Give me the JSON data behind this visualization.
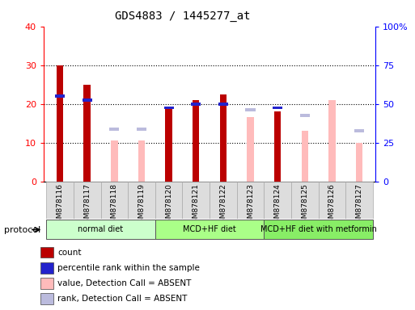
{
  "title": "GDS4883 / 1445277_at",
  "samples": [
    "GSM878116",
    "GSM878117",
    "GSM878118",
    "GSM878119",
    "GSM878120",
    "GSM878121",
    "GSM878122",
    "GSM878123",
    "GSM878124",
    "GSM878125",
    "GSM878126",
    "GSM878127"
  ],
  "count": [
    30,
    25,
    0,
    0,
    19,
    21,
    22.5,
    0,
    18,
    0,
    0,
    0
  ],
  "percentile": [
    22,
    21,
    0,
    0,
    19,
    20,
    20,
    0,
    19,
    0,
    0,
    0
  ],
  "value_absent": [
    0,
    0,
    10.5,
    10.5,
    0,
    0,
    0,
    16.5,
    0,
    13,
    21,
    10
  ],
  "rank_absent": [
    0,
    0,
    13.5,
    13.5,
    0,
    0,
    0,
    18.5,
    0,
    17,
    0,
    13
  ],
  "count_color": "#bb0000",
  "percentile_color": "#2222cc",
  "value_absent_color": "#ffbbbb",
  "rank_absent_color": "#bbbbdd",
  "ylim_left": [
    0,
    40
  ],
  "yticks_left": [
    0,
    10,
    20,
    30,
    40
  ],
  "ytick_labels_right": [
    "0",
    "25",
    "50",
    "75",
    "100%"
  ],
  "groups": [
    {
      "label": "normal diet",
      "start": 0,
      "end": 4,
      "color": "#ccffcc"
    },
    {
      "label": "MCD+HF diet",
      "start": 4,
      "end": 8,
      "color": "#aaff88"
    },
    {
      "label": "MCD+HF diet with metformin",
      "start": 8,
      "end": 12,
      "color": "#88ee66"
    }
  ],
  "protocol_label": "protocol",
  "bar_width": 0.25,
  "marker_size": 6,
  "legend_items": [
    {
      "label": "count",
      "color": "#bb0000"
    },
    {
      "label": "percentile rank within the sample",
      "color": "#2222cc"
    },
    {
      "label": "value, Detection Call = ABSENT",
      "color": "#ffbbbb"
    },
    {
      "label": "rank, Detection Call = ABSENT",
      "color": "#bbbbdd"
    }
  ]
}
